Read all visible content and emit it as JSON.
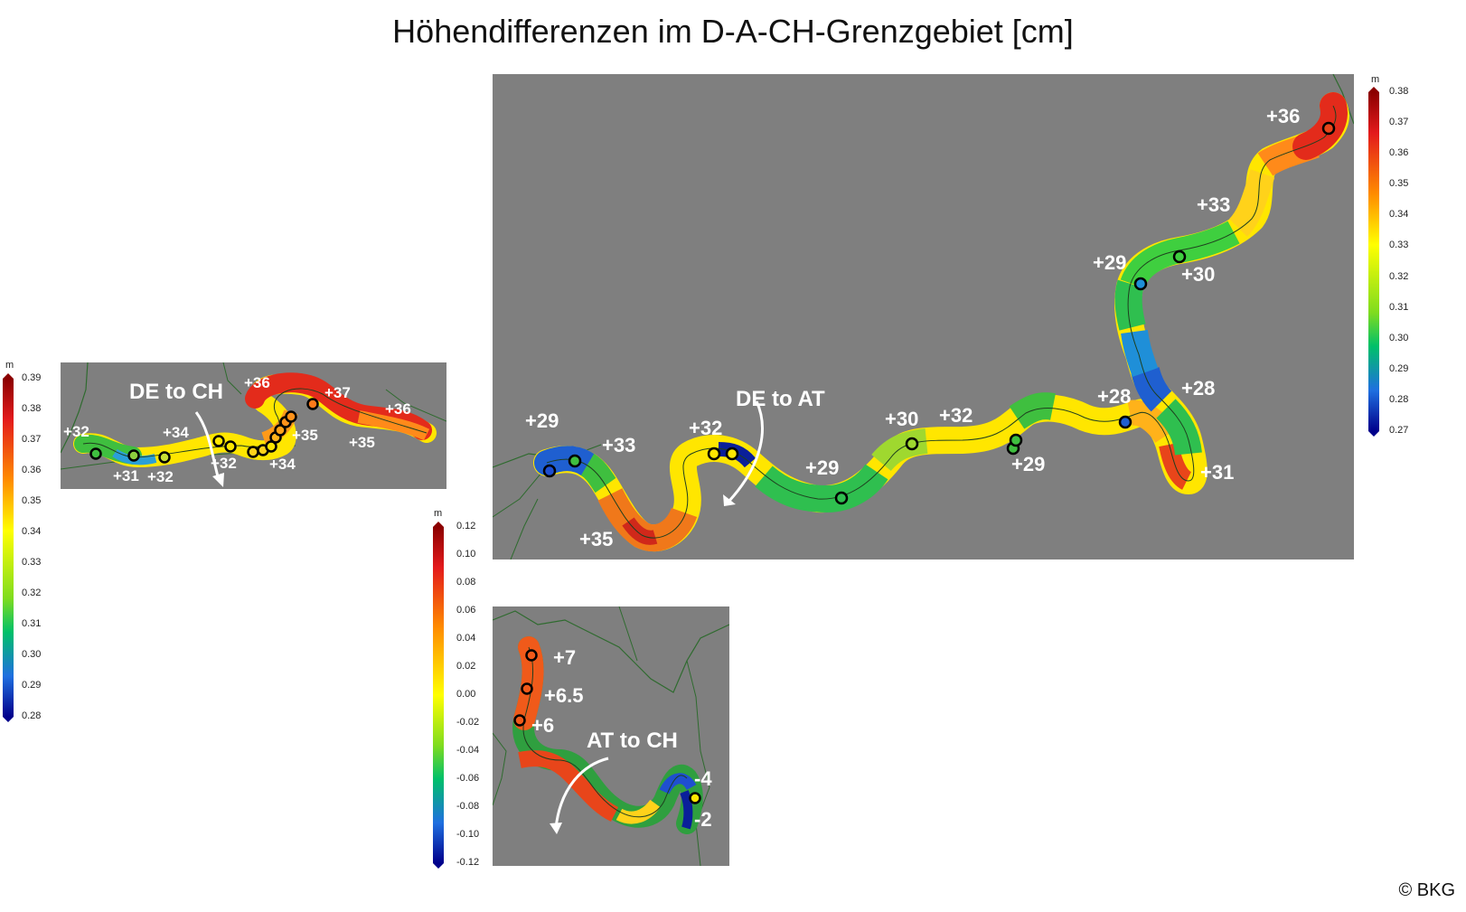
{
  "title": "Höhendifferenzen im D-A-CH-Grenzgebiet [cm]",
  "copyright": "© BKG",
  "colorbars": {
    "left": {
      "unit": "m",
      "ticks": [
        "0.39",
        "0.38",
        "0.37",
        "0.36",
        "0.35",
        "0.34",
        "0.33",
        "0.32",
        "0.31",
        "0.30",
        "0.29",
        "0.28"
      ]
    },
    "middle": {
      "unit": "m",
      "ticks": [
        "0.12",
        "0.10",
        "0.08",
        "0.06",
        "0.04",
        "0.02",
        "0.00",
        "-0.02",
        "-0.04",
        "-0.06",
        "-0.08",
        "-0.10",
        "-0.12"
      ]
    },
    "right": {
      "unit": "m",
      "ticks": [
        "0.38",
        "0.37",
        "0.36",
        "0.35",
        "0.34",
        "0.33",
        "0.32",
        "0.31",
        "0.30",
        "0.29",
        "0.28",
        "0.27"
      ]
    }
  },
  "maps": {
    "de_ch": {
      "arrow_label": "DE to CH",
      "labels": [
        "+32",
        "+31",
        "+32",
        "+34",
        "+32",
        "+36",
        "+37",
        "+35",
        "+35",
        "+34",
        "+36"
      ]
    },
    "de_at": {
      "arrow_label": "DE to AT",
      "labels": [
        "+29",
        "+33",
        "+35",
        "+32",
        "+29",
        "+30",
        "+32",
        "+29",
        "+28",
        "+28",
        "+31",
        "+29",
        "+30",
        "+33",
        "+36"
      ]
    },
    "at_ch": {
      "arrow_label": "AT to CH",
      "labels": [
        "+7",
        "+6.5",
        "+6",
        "-4",
        "-2"
      ]
    }
  }
}
